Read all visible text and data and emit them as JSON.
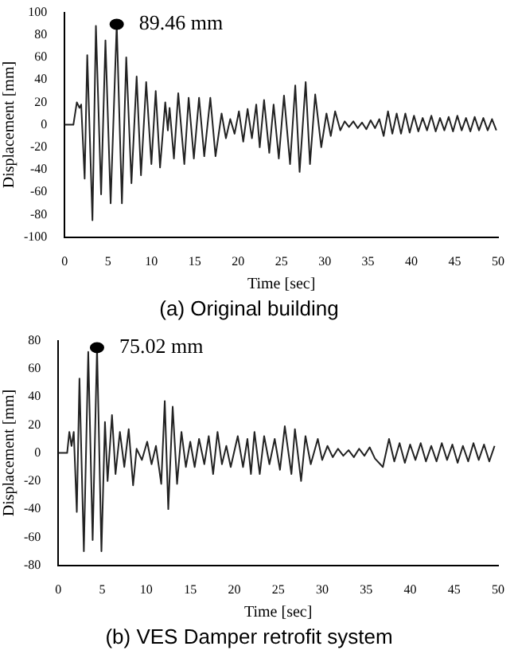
{
  "chart_data": [
    {
      "type": "line",
      "title": "(a) Original building",
      "xlabel": "Time [sec]",
      "ylabel": "Displacement [mm]",
      "xlim": [
        0,
        50
      ],
      "xticks": [
        0,
        5,
        10,
        15,
        20,
        25,
        30,
        35,
        40,
        45,
        50
      ],
      "ylim": [
        -100,
        100
      ],
      "yticks": [
        -100,
        -80,
        -60,
        -40,
        -20,
        0,
        20,
        40,
        60,
        80,
        100
      ],
      "grid": false,
      "legend": false,
      "marker": "none",
      "line_style": "solid",
      "x": [
        0,
        1.0,
        1.4,
        1.7,
        1.9,
        2.3,
        2.6,
        3.2,
        3.6,
        4.2,
        4.7,
        5.3,
        6.0,
        6.6,
        7.1,
        7.7,
        8.3,
        8.8,
        9.4,
        10.0,
        10.5,
        11.0,
        11.6,
        11.9,
        12.1,
        12.6,
        13.1,
        13.8,
        14.3,
        14.9,
        15.5,
        16.1,
        16.8,
        17.4,
        18.1,
        18.6,
        19.1,
        19.6,
        20.1,
        20.6,
        21.1,
        21.6,
        22.1,
        22.5,
        23.0,
        23.6,
        24.1,
        24.7,
        25.3,
        26.0,
        26.6,
        27.1,
        27.8,
        28.3,
        28.9,
        29.6,
        30.2,
        30.7,
        31.2,
        31.8,
        32.3,
        32.8,
        33.3,
        33.8,
        34.3,
        34.8,
        35.3,
        35.8,
        36.3,
        36.8,
        37.3,
        37.8,
        38.3,
        38.8,
        39.3,
        39.8,
        40.3,
        40.8,
        41.3,
        41.8,
        42.3,
        42.8,
        43.3,
        43.8,
        44.3,
        44.8,
        45.3,
        45.8,
        46.3,
        46.8,
        47.3,
        47.8,
        48.3,
        48.8,
        49.3,
        49.8
      ],
      "series": [
        {
          "color": "#222222",
          "values": [
            0,
            0,
            20,
            15,
            18,
            -48,
            62,
            -85,
            88,
            -62,
            75,
            -70,
            89.46,
            -70,
            60,
            -52,
            43,
            -45,
            38,
            -35,
            30,
            -38,
            20,
            -5,
            15,
            -30,
            28,
            -35,
            24,
            -30,
            24,
            -28,
            24,
            -28,
            10,
            -12,
            5,
            -8,
            12,
            -15,
            14,
            -12,
            18,
            -20,
            22,
            -25,
            18,
            -30,
            26,
            -35,
            35,
            -42,
            38,
            -35,
            27,
            -20,
            10,
            -10,
            12,
            -5,
            3,
            -2,
            3,
            -3,
            2,
            -4,
            4,
            -3,
            5,
            -10,
            12,
            -8,
            10,
            -8,
            10,
            -7,
            8,
            -6,
            6,
            -5,
            8,
            -6,
            6,
            -5,
            7,
            -6,
            8,
            -5,
            6,
            -6,
            7,
            -5,
            6,
            -5,
            5,
            -5
          ]
        }
      ],
      "annotations": [
        {
          "text": "89.46 mm",
          "x": 6.0,
          "y": 89.46
        }
      ]
    },
    {
      "type": "line",
      "title": "(b) VES Damper retrofit system",
      "xlabel": "Time [sec]",
      "ylabel": "Displacement [mm]",
      "xlim": [
        0,
        50
      ],
      "xticks": [
        0,
        5,
        10,
        15,
        20,
        25,
        30,
        35,
        40,
        45,
        50
      ],
      "ylim": [
        -80,
        80
      ],
      "yticks": [
        -80,
        -60,
        -40,
        -20,
        0,
        20,
        40,
        60,
        80
      ],
      "grid": false,
      "legend": false,
      "marker": "none",
      "line_style": "solid",
      "x": [
        0,
        1.0,
        1.25,
        1.5,
        1.75,
        2.1,
        2.4,
        2.9,
        3.4,
        3.9,
        4.4,
        4.9,
        5.3,
        5.6,
        6.1,
        6.5,
        7.0,
        7.5,
        8.0,
        8.5,
        8.9,
        9.5,
        10.1,
        10.6,
        11.1,
        11.7,
        12.1,
        12.5,
        13.0,
        13.5,
        14.0,
        14.5,
        15.0,
        15.5,
        16.0,
        16.6,
        17.1,
        17.6,
        18.1,
        18.6,
        19.1,
        19.6,
        20.4,
        21.0,
        21.5,
        21.9,
        22.3,
        22.9,
        23.4,
        24.0,
        24.6,
        25.2,
        25.75,
        26.5,
        26.9,
        27.6,
        28.1,
        28.7,
        29.5,
        30.0,
        30.6,
        31.2,
        31.8,
        32.4,
        33.0,
        33.6,
        34.2,
        34.8,
        35.4,
        36.0,
        36.9,
        37.6,
        38.2,
        38.8,
        39.4,
        40.0,
        40.6,
        41.2,
        41.8,
        42.4,
        43.0,
        43.6,
        44.2,
        44.8,
        45.4,
        46.0,
        46.6,
        47.2,
        47.8,
        48.4,
        49.0,
        49.6
      ],
      "series": [
        {
          "color": "#222222",
          "values": [
            0,
            0,
            15,
            5,
            15,
            -42,
            53,
            -70,
            72,
            -62,
            75.02,
            -70,
            22,
            -20,
            27,
            -15,
            15,
            -10,
            17,
            -23,
            3,
            -5,
            8,
            -8,
            5,
            -22,
            37,
            -40,
            33,
            -22,
            15,
            -10,
            8,
            -10,
            10,
            -8,
            12,
            -15,
            15,
            -8,
            5,
            -10,
            12,
            -10,
            10,
            -15,
            15,
            -15,
            12,
            -8,
            10,
            -12,
            19,
            -15,
            17,
            -20,
            12,
            -8,
            10,
            -5,
            5,
            -3,
            3,
            -2,
            2,
            -3,
            3,
            -2,
            4,
            -4,
            -10,
            10,
            -6,
            7,
            -7,
            6,
            -5,
            7,
            -6,
            5,
            -6,
            7,
            -5,
            6,
            -7,
            5,
            -6,
            7,
            -5,
            6,
            -6,
            5
          ]
        }
      ],
      "annotations": [
        {
          "text": "75.02 mm",
          "x": 4.4,
          "y": 75.02
        }
      ]
    }
  ]
}
